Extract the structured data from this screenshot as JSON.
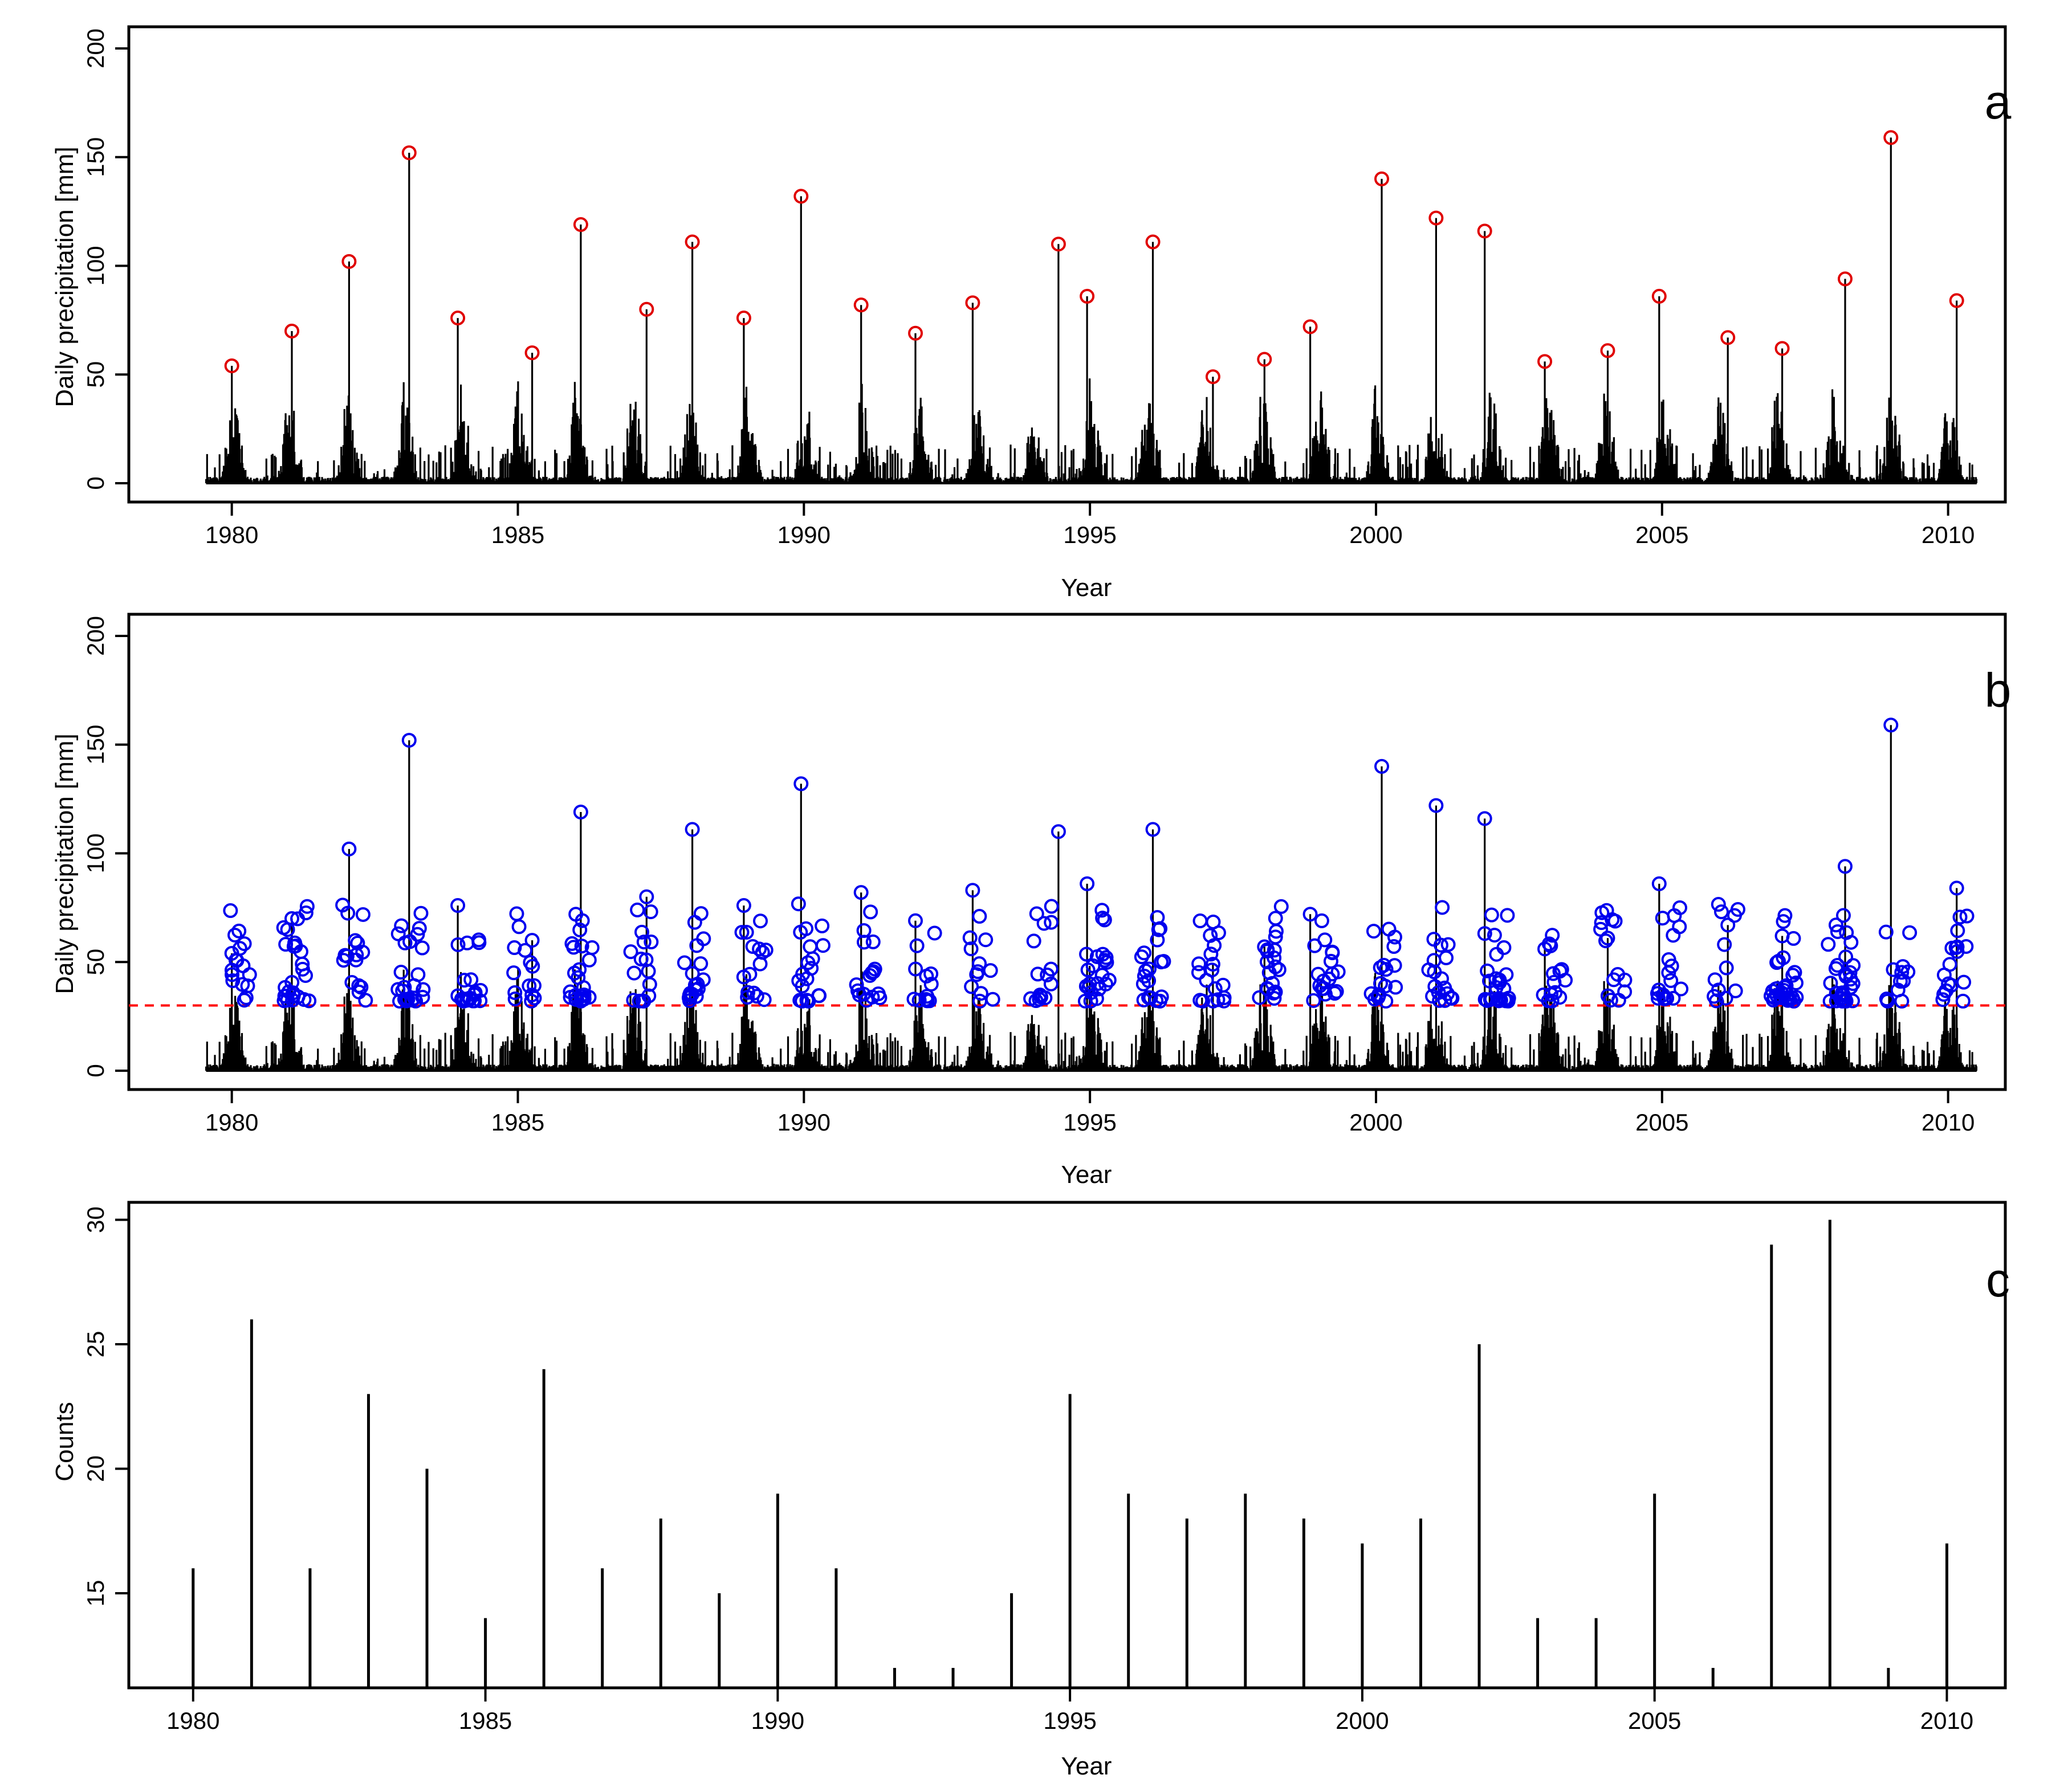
{
  "chart_data": [
    {
      "type": "line",
      "panel_label": "a",
      "xlabel": "Year",
      "ylabel": "Daily precipitation [mm]",
      "x_ticks": [
        1980,
        1985,
        1990,
        1995,
        2000,
        2005,
        2010
      ],
      "y_ticks": [
        0,
        50,
        100,
        150,
        200
      ],
      "xlim": [
        1978.2,
        2011.0
      ],
      "ylim": [
        0,
        200
      ],
      "marker_color": "#e00000",
      "line_color": "#000000",
      "annual_maxima": {
        "x": [
          1980.0,
          1981.05,
          1982.05,
          1983.1,
          1983.95,
          1985.25,
          1986.1,
          1987.25,
          1988.05,
          1988.95,
          1989.95,
          1991.0,
          1991.95,
          1992.95,
          1994.45,
          1994.95,
          1996.1,
          1997.15,
          1998.05,
          1998.85,
          2000.1,
          2001.05,
          2001.9,
          2002.95,
          2004.05,
          2004.95,
          2006.15,
          2007.1,
          2008.2,
          2009.0,
          2010.15
        ],
        "y": [
          54,
          70,
          102,
          152,
          76,
          60,
          119,
          80,
          111,
          76,
          132,
          82,
          69,
          83,
          110,
          86,
          111,
          49,
          57,
          72,
          140,
          122,
          116,
          56,
          61,
          86,
          67,
          62,
          94,
          159,
          84
        ]
      }
    },
    {
      "type": "line",
      "panel_label": "b",
      "xlabel": "Year",
      "ylabel": "Daily precipitation [mm]",
      "x_ticks": [
        1980,
        1985,
        1990,
        1995,
        2000,
        2005,
        2010
      ],
      "y_ticks": [
        0,
        50,
        100,
        150,
        200
      ],
      "xlim": [
        1978.2,
        2011.0
      ],
      "ylim": [
        0,
        200
      ],
      "threshold": 30,
      "threshold_color": "#ff0000",
      "marker_color": "#0000ee",
      "line_color": "#000000"
    },
    {
      "type": "bar",
      "panel_label": "c",
      "xlabel": "Year",
      "ylabel": "Counts",
      "x_ticks": [
        1980,
        1985,
        1990,
        1995,
        2000,
        2005,
        2010
      ],
      "y_ticks": [
        15,
        20,
        25,
        30
      ],
      "xlim": [
        1978.9,
        2011.0
      ],
      "ylim": [
        11.2,
        30.7
      ],
      "categories": [
        1980,
        1981,
        1982,
        1983,
        1984,
        1985,
        1986,
        1987,
        1988,
        1989,
        1990,
        1991,
        1992,
        1993,
        1994,
        1995,
        1996,
        1997,
        1998,
        1999,
        2000,
        2001,
        2002,
        2003,
        2004,
        2005,
        2006,
        2007,
        2008,
        2009,
        2010
      ],
      "values": [
        16,
        26,
        16,
        23,
        20,
        14,
        24,
        16,
        18,
        15,
        19,
        16,
        12,
        12,
        15,
        23,
        19,
        18,
        19,
        18,
        17,
        18,
        25,
        14,
        14,
        19,
        12,
        29,
        30,
        12,
        17
      ]
    }
  ]
}
